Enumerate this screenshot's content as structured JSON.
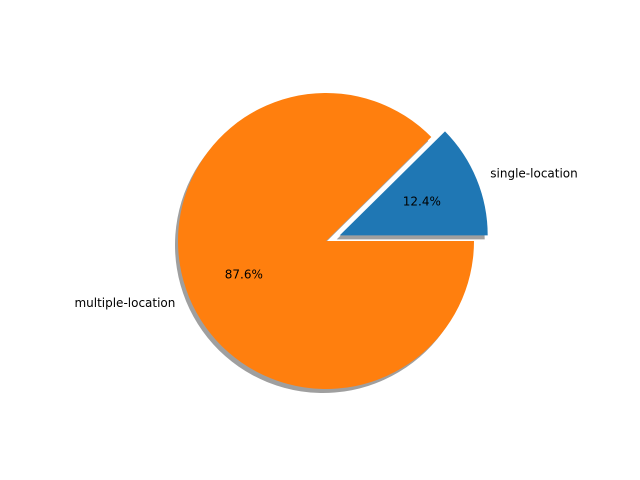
{
  "chart_data": {
    "type": "pie",
    "labels": [
      "single-location",
      "multiple-location"
    ],
    "values": [
      12.4,
      87.6
    ],
    "value_labels": [
      "12.4%",
      "87.6%"
    ],
    "colors": [
      "#1f77b4",
      "#ff7f0e"
    ],
    "exploded": [
      "single-location"
    ],
    "shadow": true,
    "start_angle_deg": 0,
    "direction": "counterclockwise"
  }
}
